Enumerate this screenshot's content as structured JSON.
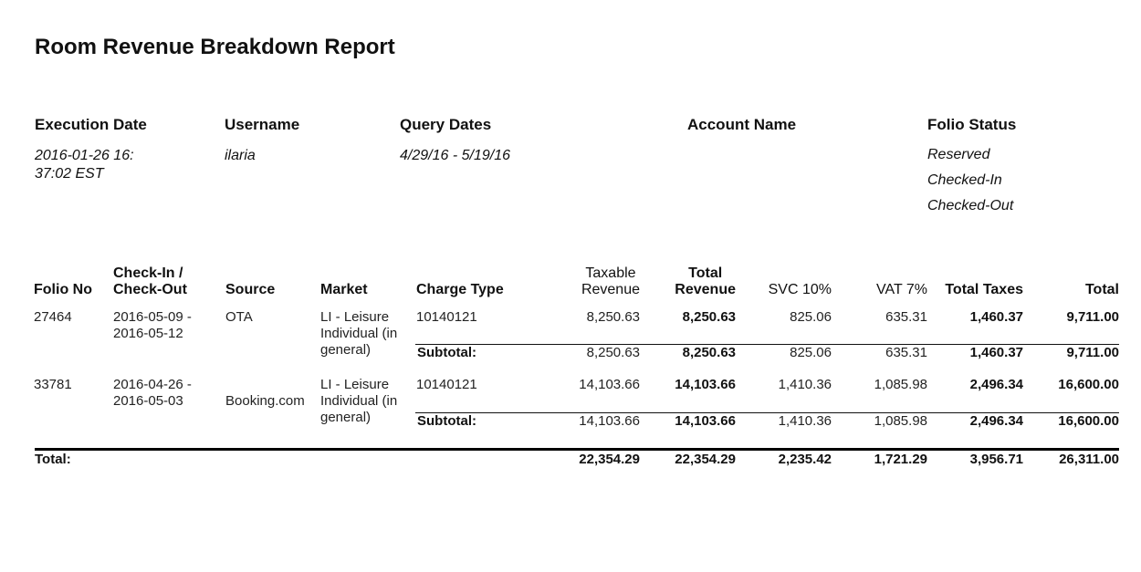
{
  "report": {
    "title": "Room Revenue Breakdown Report"
  },
  "meta": {
    "execution_date": {
      "label": "Execution Date",
      "value_line1": "2016-01-26 16:",
      "value_line2": "37:02 EST"
    },
    "username": {
      "label": "Username",
      "value": "ilaria"
    },
    "query_dates": {
      "label": "Query Dates",
      "value": "4/29/16 - 5/19/16"
    },
    "account_name": {
      "label": "Account Name",
      "value": ""
    },
    "folio_status": {
      "label": "Folio Status",
      "values": [
        "Reserved",
        "Checked-In",
        "Checked-Out"
      ]
    }
  },
  "columns": {
    "folio_no": "Folio No",
    "checkin_line1": "Check-In /",
    "checkin_line2": "Check-Out",
    "source": "Source",
    "market": "Market",
    "charge_type": "Charge Type",
    "taxable_line1": "Taxable",
    "taxable_line2": "Revenue",
    "total_rev_line1": "Total",
    "total_rev_line2": "Revenue",
    "svc": "SVC 10%",
    "vat": "VAT 7%",
    "total_taxes": "Total Taxes",
    "total": "Total"
  },
  "rows": [
    {
      "folio_no": "27464",
      "dates_line1": "2016-05-09 -",
      "dates_line2": "2016-05-12",
      "source": "OTA",
      "market_line1": "LI - Leisure",
      "market_line2": "Individual (in",
      "market_line3": "general)",
      "charge_type": "10140121",
      "taxable": "8,250.63",
      "total_revenue": "8,250.63",
      "svc": "825.06",
      "vat": "635.31",
      "total_taxes": "1,460.37",
      "total": "9,711.00",
      "subtotal": {
        "label": "Subtotal:",
        "taxable": "8,250.63",
        "total_revenue": "8,250.63",
        "svc": "825.06",
        "vat": "635.31",
        "total_taxes": "1,460.37",
        "total": "9,711.00"
      }
    },
    {
      "folio_no": "33781",
      "dates_line1": "2016-04-26 -",
      "dates_line2": "2016-05-03",
      "source": "Booking.com",
      "market_line1": "LI - Leisure",
      "market_line2": "Individual (in",
      "market_line3": "general)",
      "charge_type": "10140121",
      "taxable": "14,103.66",
      "total_revenue": "14,103.66",
      "svc": "1,410.36",
      "vat": "1,085.98",
      "total_taxes": "2,496.34",
      "total": "16,600.00",
      "subtotal": {
        "label": "Subtotal:",
        "taxable": "14,103.66",
        "total_revenue": "14,103.66",
        "svc": "1,410.36",
        "vat": "1,085.98",
        "total_taxes": "2,496.34",
        "total": "16,600.00"
      }
    }
  ],
  "grand_total": {
    "label": "Total:",
    "taxable": "22,354.29",
    "total_revenue": "22,354.29",
    "svc": "2,235.42",
    "vat": "1,721.29",
    "total_taxes": "3,956.71",
    "total": "26,311.00"
  }
}
